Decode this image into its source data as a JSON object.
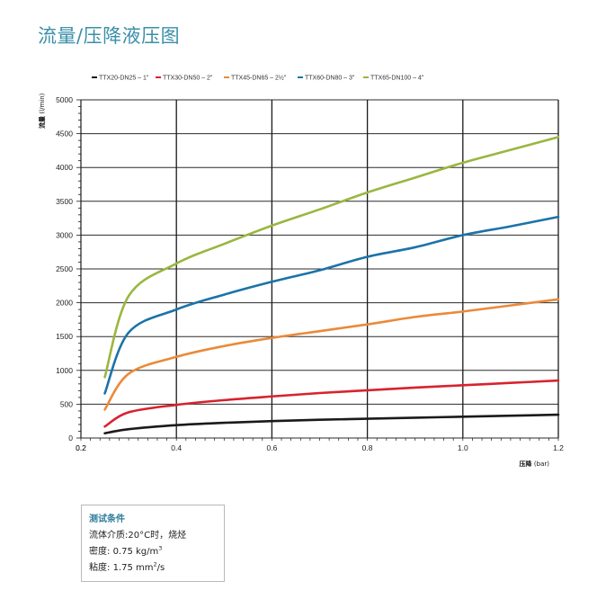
{
  "page": {
    "title": "流量/压降液压图"
  },
  "conditions": {
    "title": "测试条件",
    "medium_label": "流体介质:",
    "medium_value": "20°C时，烧烃",
    "density_label": "密度:",
    "density_value": "0.75 kg/m",
    "density_sup": "3",
    "viscosity_label": "粘度:",
    "viscosity_value": "1.75 mm",
    "viscosity_sup": "2",
    "viscosity_suffix": "/s"
  },
  "chart_data": {
    "type": "line",
    "title": "",
    "xlabel": "压降",
    "xunit": "(bar)",
    "ylabel": "流量",
    "yunit": "(l/min)",
    "xlim": [
      0.2,
      1.2
    ],
    "ylim": [
      0,
      5000
    ],
    "xticks": [
      "0.2",
      "0.2",
      "0.4",
      "0.6",
      "0.8",
      "1.0",
      "1.2"
    ],
    "xtick_values": [
      0.2,
      0.2,
      0.4,
      0.6,
      0.8,
      1.0,
      1.2
    ],
    "yticks": [
      "0",
      "500",
      "1000",
      "1500",
      "2000",
      "2500",
      "3000",
      "3500",
      "4000",
      "4500",
      "5000"
    ],
    "ytick_values": [
      0,
      500,
      1000,
      1500,
      2000,
      2500,
      3000,
      3500,
      4000,
      4500,
      5000
    ],
    "major_x_gridlines": [
      0.4,
      0.6,
      0.8,
      1.0,
      1.2
    ],
    "minor_x_gridline": 0.2,
    "grid": true,
    "legend_position": "top",
    "x": [
      0.25,
      0.3,
      0.4,
      0.5,
      0.6,
      0.7,
      0.8,
      0.9,
      1.0,
      1.1,
      1.2
    ],
    "series": [
      {
        "name": "TTX20-DN25 – 1\"",
        "color": "#1a1a1a",
        "values": [
          70,
          130,
          190,
          225,
          250,
          270,
          285,
          300,
          315,
          330,
          345
        ]
      },
      {
        "name": "TTX30-DN50 – 2\"",
        "color": "#d7232f",
        "values": [
          170,
          380,
          490,
          560,
          615,
          665,
          705,
          745,
          780,
          815,
          850
        ]
      },
      {
        "name": "TTX45-DN65 – 2½\"",
        "color": "#ea8a3a",
        "values": [
          420,
          950,
          1200,
          1360,
          1480,
          1580,
          1680,
          1790,
          1870,
          1960,
          2050
        ]
      },
      {
        "name": "TTX60-DN80 – 3\"",
        "color": "#1b73a8",
        "values": [
          660,
          1560,
          1900,
          2120,
          2310,
          2480,
          2680,
          2820,
          3000,
          3130,
          3270
        ]
      },
      {
        "name": "TTX65-DN100 – 4\"",
        "color": "#99b73f",
        "values": [
          900,
          2100,
          2580,
          2870,
          3140,
          3380,
          3630,
          3850,
          4070,
          4260,
          4450
        ]
      }
    ]
  }
}
